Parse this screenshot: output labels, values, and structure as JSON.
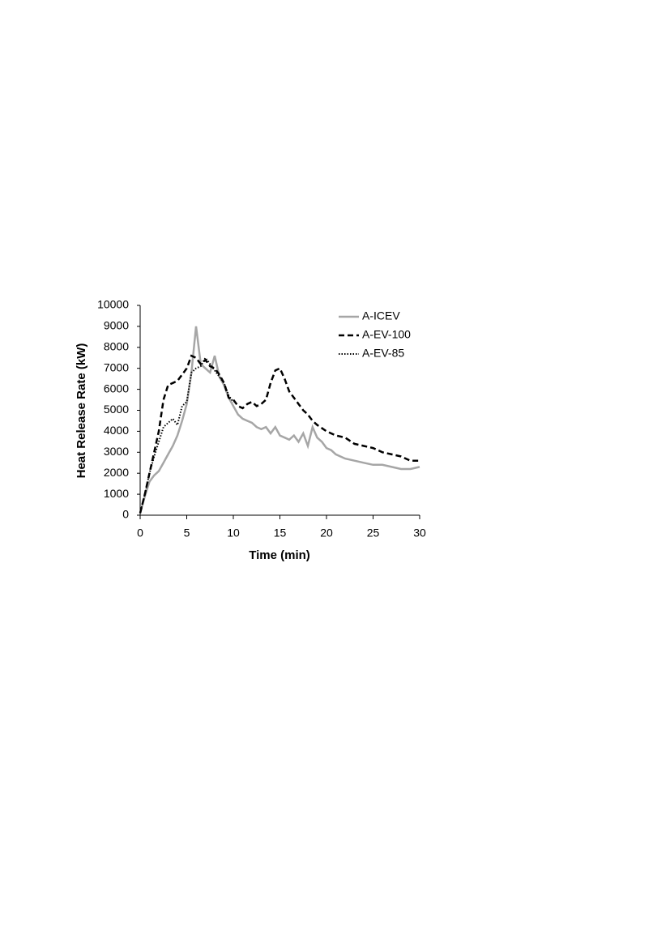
{
  "chart_data": {
    "type": "line",
    "x_label": "Time (min)",
    "y_label": "Heat Release Rate (kW)",
    "xlim": [
      0,
      30
    ],
    "xticks": [
      0,
      5,
      10,
      15,
      20,
      25,
      30
    ],
    "ylim": [
      0,
      10000
    ],
    "yticks": [
      0,
      1000,
      2000,
      3000,
      4000,
      5000,
      6000,
      7000,
      8000,
      9000,
      10000
    ],
    "legend": "upper right",
    "series": [
      {
        "name": "A-ICEV",
        "color": "#a6a6a6",
        "style": "solid",
        "x": [
          0,
          0.5,
          1,
          1.5,
          2,
          2.5,
          3,
          3.5,
          4,
          4.5,
          5,
          5.5,
          6,
          6.5,
          7,
          7.5,
          8,
          8.5,
          9,
          9.5,
          10,
          10.5,
          11,
          11.5,
          12,
          12.5,
          13,
          13.5,
          14,
          14.5,
          15,
          15.5,
          16,
          16.5,
          17,
          17.5,
          18,
          18.5,
          19,
          19.5,
          20,
          20.5,
          21,
          22,
          23,
          24,
          25,
          26,
          27,
          28,
          29,
          30
        ],
        "values": [
          100,
          900,
          1600,
          1900,
          2100,
          2500,
          2900,
          3300,
          3800,
          4500,
          5300,
          6800,
          9000,
          7200,
          7000,
          6800,
          7600,
          6600,
          6200,
          5600,
          5200,
          4800,
          4600,
          4500,
          4400,
          4200,
          4100,
          4200,
          3900,
          4200,
          3800,
          3700,
          3600,
          3800,
          3500,
          3900,
          3300,
          4200,
          3700,
          3500,
          3200,
          3100,
          2900,
          2700,
          2600,
          2500,
          2400,
          2400,
          2300,
          2200,
          2200,
          2300
        ]
      },
      {
        "name": "A-EV-100",
        "color": "#000000",
        "style": "dashed",
        "x": [
          0,
          0.5,
          1,
          1.5,
          2,
          2.5,
          3,
          3.5,
          4,
          4.5,
          5,
          5.5,
          6,
          6.5,
          7,
          7.5,
          8,
          8.5,
          9,
          9.5,
          10,
          10.5,
          11,
          11.5,
          12,
          12.5,
          13,
          13.5,
          14,
          14.5,
          15,
          15.5,
          16,
          16.5,
          17,
          17.5,
          18,
          18.5,
          19,
          20,
          21,
          22,
          23,
          24,
          25,
          26,
          27,
          28,
          29,
          30
        ],
        "values": [
          100,
          1000,
          2000,
          3000,
          4000,
          5500,
          6200,
          6300,
          6400,
          6700,
          7000,
          7600,
          7500,
          7200,
          7400,
          7100,
          7000,
          6700,
          6300,
          5600,
          5500,
          5200,
          5100,
          5300,
          5400,
          5200,
          5300,
          5500,
          6300,
          6900,
          7000,
          6500,
          5900,
          5600,
          5300,
          5000,
          4800,
          4500,
          4300,
          4000,
          3800,
          3700,
          3400,
          3300,
          3200,
          3000,
          2900,
          2800,
          2600,
          2600
        ]
      },
      {
        "name": "A-EV-85",
        "color": "#000000",
        "style": "dotted",
        "x": [
          0,
          0.5,
          1,
          1.5,
          2,
          2.5,
          3,
          3.5,
          4,
          4.5,
          5,
          5.5,
          6,
          6.5,
          7,
          7.5,
          8,
          8.5,
          9,
          9.5,
          10
        ],
        "values": [
          100,
          1000,
          2000,
          2800,
          3500,
          4200,
          4400,
          4600,
          4300,
          5200,
          5400,
          6800,
          7000,
          7100,
          7500,
          7200,
          6900,
          6600,
          6300,
          5700,
          5400
        ]
      }
    ]
  }
}
